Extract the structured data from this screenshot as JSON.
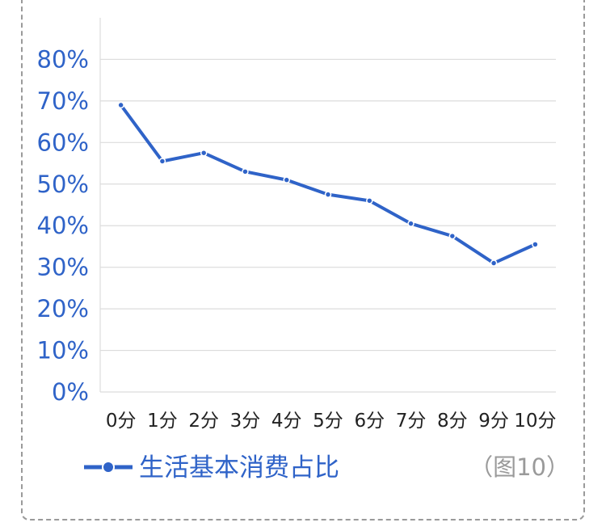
{
  "chart_data": {
    "type": "line",
    "categories": [
      "0分",
      "1分",
      "2分",
      "3分",
      "4分",
      "5分",
      "6分",
      "7分",
      "8分",
      "9分",
      "10分"
    ],
    "series": [
      {
        "name": "生活基本消费占比",
        "values": [
          69,
          55.5,
          57.5,
          53,
          51,
          47.5,
          46,
          40.5,
          37.5,
          31,
          35.5
        ],
        "color": "#2f63c8"
      }
    ],
    "y_ticks": [
      "0%",
      "10%",
      "20%",
      "30%",
      "40%",
      "50%",
      "60%",
      "70%",
      "80%"
    ],
    "ylim": [
      0,
      90
    ],
    "grid": true,
    "legend_position": "bottom-left"
  },
  "caption": "（图10）"
}
